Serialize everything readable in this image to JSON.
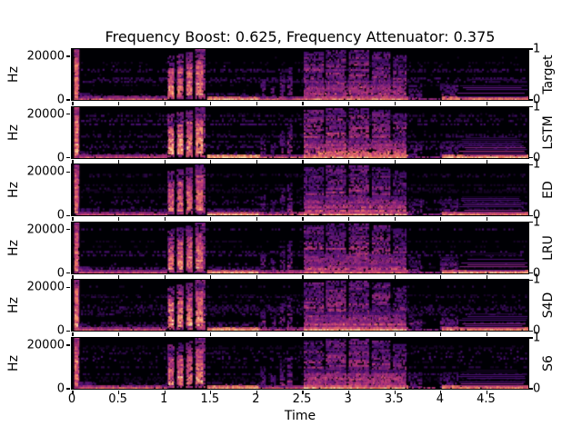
{
  "chart_data": {
    "type": "heatmap",
    "subtype": "spectrogram-grid",
    "title": "Frequency Boost: 0.625, Frequency Attenuator: 0.375",
    "xlabel": "Time",
    "ylabel": "Hz",
    "x_ticks": [
      "0",
      "0.5",
      "1",
      "1.5",
      "2",
      "2.5",
      "3",
      "3.5",
      "4",
      "4.5"
    ],
    "x_range": [
      0,
      4.96
    ],
    "y_ticks": [
      {
        "label": "20000",
        "frac": 0.857
      },
      {
        "label": "0",
        "frac": 0.0
      }
    ],
    "right_ticks": [
      {
        "label": "1",
        "frac": 1.0
      },
      {
        "label": "0",
        "frac": 0.0
      }
    ],
    "rows": [
      {
        "label": "Target",
        "gain": 1.0
      },
      {
        "label": "LSTM",
        "gain": 1.08
      },
      {
        "label": "ED",
        "gain": 0.96
      },
      {
        "label": "LRU",
        "gain": 1.0
      },
      {
        "label": "S4D",
        "gain": 1.03
      },
      {
        "label": "S6",
        "gain": 1.0
      }
    ],
    "colormap": "magma",
    "colormap_stops": [
      [
        0.0,
        "#000004"
      ],
      [
        0.25,
        "#51127c"
      ],
      [
        0.5,
        "#b73779"
      ],
      [
        0.75,
        "#fc8961"
      ],
      [
        1.0,
        "#fcfdbf"
      ]
    ],
    "colors": {
      "figure_background": "#ffffff",
      "axis_color": "#000000",
      "spectrogram_background": "#000004"
    },
    "events": [
      {
        "name": "background-noise",
        "t0": 0.1,
        "t1": 4.93,
        "f0": 0.0,
        "f1": 0.88,
        "base": 0.14,
        "grad": 0.2,
        "var": 1.0,
        "gap": 0.93
      },
      {
        "name": "onset-stripe",
        "t0": 0.025,
        "t1": 0.075,
        "f0": 0.0,
        "f1": 1.0,
        "base": 0.5,
        "grad": 0.15,
        "var": 0.5,
        "gap": 0.06
      },
      {
        "name": "onset-core",
        "t0": 0.03,
        "t1": 0.065,
        "f0": 0.05,
        "f1": 0.8,
        "base": 0.68,
        "grad": 0.15,
        "var": 0.3,
        "gap": 0.0
      },
      {
        "name": "intro-start-bump",
        "t0": 0.07,
        "t1": 0.2,
        "f0": 0.0,
        "f1": 0.12,
        "base": 0.4,
        "grad": 0.55,
        "var": 0.6,
        "gap": 0.3
      },
      {
        "name": "intro-low-band",
        "t0": 0.08,
        "t1": 1.03,
        "f0": 0.0,
        "f1": 0.05,
        "base": 0.6,
        "grad": 0.5,
        "var": 0.3,
        "gap": 0.04
      },
      {
        "name": "intro-low-noise",
        "t0": 0.08,
        "t1": 1.03,
        "f0": 0.05,
        "f1": 0.11,
        "base": 0.26,
        "grad": 0.5,
        "var": 0.8,
        "gap": 0.6
      },
      {
        "name": "syllable-1",
        "t0": 1.04,
        "t1": 1.11,
        "f0": 0.02,
        "f1": 0.87,
        "base": 0.45,
        "grad": 0.35,
        "var": 0.6,
        "gap": 0.22
      },
      {
        "name": "syllable-1-core",
        "t0": 1.05,
        "t1": 1.1,
        "f0": 0.08,
        "f1": 0.62,
        "base": 0.72,
        "grad": 0.3,
        "var": 0.35,
        "gap": 0.1
      },
      {
        "name": "syllable-2",
        "t0": 1.14,
        "t1": 1.21,
        "f0": 0.02,
        "f1": 0.9,
        "base": 0.45,
        "grad": 0.35,
        "var": 0.6,
        "gap": 0.22
      },
      {
        "name": "syllable-2-core",
        "t0": 1.15,
        "t1": 1.2,
        "f0": 0.08,
        "f1": 0.65,
        "base": 0.72,
        "grad": 0.3,
        "var": 0.35,
        "gap": 0.1
      },
      {
        "name": "syllable-3",
        "t0": 1.24,
        "t1": 1.31,
        "f0": 0.02,
        "f1": 0.93,
        "base": 0.45,
        "grad": 0.35,
        "var": 0.6,
        "gap": 0.22
      },
      {
        "name": "syllable-3-core",
        "t0": 1.25,
        "t1": 1.3,
        "f0": 0.1,
        "f1": 0.68,
        "base": 0.72,
        "grad": 0.3,
        "var": 0.35,
        "gap": 0.1
      },
      {
        "name": "syllable-4",
        "t0": 1.34,
        "t1": 1.44,
        "f0": 0.02,
        "f1": 1.0,
        "base": 0.45,
        "grad": 0.35,
        "var": 0.6,
        "gap": 0.22
      },
      {
        "name": "syllable-4-core",
        "t0": 1.35,
        "t1": 1.42,
        "f0": 0.1,
        "f1": 0.75,
        "base": 0.72,
        "grad": 0.3,
        "var": 0.35,
        "gap": 0.1
      },
      {
        "name": "mid-low-band",
        "t0": 1.47,
        "t1": 2.03,
        "f0": 0.0,
        "f1": 0.065,
        "base": 0.82,
        "grad": 0.4,
        "var": 0.18,
        "gap": 0.0
      },
      {
        "name": "mid-low-haze",
        "t0": 1.47,
        "t1": 2.03,
        "f0": 0.065,
        "f1": 0.12,
        "base": 0.28,
        "grad": 0.6,
        "var": 0.7,
        "gap": 0.55
      },
      {
        "name": "low-line-2",
        "t0": 2.03,
        "t1": 2.52,
        "f0": 0.0,
        "f1": 0.035,
        "base": 0.58,
        "grad": 0.3,
        "var": 0.35,
        "gap": 0.12
      },
      {
        "name": "spike-1",
        "t0": 2.05,
        "t1": 2.09,
        "f0": 0.03,
        "f1": 0.38,
        "base": 0.32,
        "grad": 0.45,
        "var": 0.7,
        "gap": 0.45
      },
      {
        "name": "spike-2",
        "t0": 2.16,
        "t1": 2.2,
        "f0": 0.03,
        "f1": 0.3,
        "base": 0.3,
        "grad": 0.45,
        "var": 0.7,
        "gap": 0.5
      },
      {
        "name": "spike-3",
        "t0": 2.26,
        "t1": 2.3,
        "f0": 0.03,
        "f1": 0.52,
        "base": 0.34,
        "grad": 0.45,
        "var": 0.7,
        "gap": 0.45
      },
      {
        "name": "spike-4",
        "t0": 2.34,
        "t1": 2.39,
        "f0": 0.03,
        "f1": 0.64,
        "base": 0.36,
        "grad": 0.5,
        "var": 0.7,
        "gap": 0.42
      },
      {
        "name": "phrase-blob-1",
        "t0": 2.52,
        "t1": 2.72,
        "f0": 0.03,
        "f1": 0.92,
        "base": 0.44,
        "grad": 0.45,
        "var": 0.7,
        "gap": 0.3
      },
      {
        "name": "phrase-blob-2",
        "t0": 2.76,
        "t1": 2.97,
        "f0": 0.03,
        "f1": 0.95,
        "base": 0.46,
        "grad": 0.45,
        "var": 0.7,
        "gap": 0.28
      },
      {
        "name": "phrase-blob-3",
        "t0": 3.01,
        "t1": 3.22,
        "f0": 0.03,
        "f1": 0.95,
        "base": 0.46,
        "grad": 0.45,
        "var": 0.7,
        "gap": 0.28
      },
      {
        "name": "phrase-blob-4",
        "t0": 3.26,
        "t1": 3.45,
        "f0": 0.03,
        "f1": 0.92,
        "base": 0.44,
        "grad": 0.45,
        "var": 0.7,
        "gap": 0.3
      },
      {
        "name": "phrase-blob-5",
        "t0": 3.49,
        "t1": 3.63,
        "f0": 0.03,
        "f1": 0.86,
        "base": 0.4,
        "grad": 0.5,
        "var": 0.7,
        "gap": 0.34
      },
      {
        "name": "phrase-lower-glow",
        "t0": 2.53,
        "t1": 3.62,
        "f0": 0.04,
        "f1": 0.38,
        "base": 0.5,
        "grad": 0.5,
        "var": 0.55,
        "gap": 0.35
      },
      {
        "name": "phrase-base-line",
        "t0": 2.52,
        "t1": 3.64,
        "f0": 0.0,
        "f1": 0.04,
        "base": 0.75,
        "grad": 0.3,
        "var": 0.25,
        "gap": 0.05
      },
      {
        "name": "residue",
        "t0": 3.66,
        "t1": 3.79,
        "f0": 0.02,
        "f1": 0.3,
        "base": 0.3,
        "grad": 0.5,
        "var": 0.7,
        "gap": 0.5
      },
      {
        "name": "quiet-low-line",
        "t0": 3.64,
        "t1": 3.99,
        "f0": 0.0,
        "f1": 0.03,
        "base": 0.42,
        "grad": 0.3,
        "var": 0.5,
        "gap": 0.3
      },
      {
        "name": "tail-onset-patch",
        "t0": 4.0,
        "t1": 4.18,
        "f0": 0.02,
        "f1": 0.3,
        "base": 0.3,
        "grad": 0.5,
        "var": 0.7,
        "gap": 0.45
      },
      {
        "name": "tail-base-band",
        "t0": 4.02,
        "t1": 4.96,
        "f0": 0.0,
        "f1": 0.05,
        "base": 0.78,
        "grad": 0.35,
        "var": 0.2,
        "gap": 0.02
      },
      {
        "name": "tail-harmonics",
        "t0": 4.18,
        "t1": 4.96,
        "f0": 0.05,
        "f1": 0.28,
        "base": 0.34,
        "grad": 0.45,
        "var": 0.6,
        "gap": 0.3,
        "lines": true
      },
      {
        "name": "tail-haze",
        "t0": 4.2,
        "t1": 4.9,
        "f0": 0.28,
        "f1": 0.42,
        "base": 0.16,
        "grad": 0.4,
        "var": 0.9,
        "gap": 0.8,
        "lines": true
      }
    ]
  }
}
